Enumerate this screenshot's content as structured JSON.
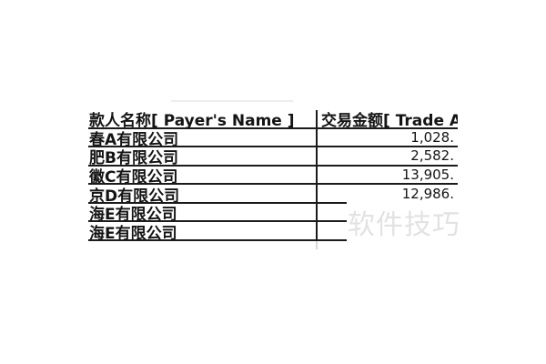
{
  "table": {
    "columns": {
      "payer_header": "款人名称[ Payer's Name ]",
      "amount_header": "交易金额[ Trade Amoun"
    },
    "rows": [
      {
        "payer": "春A有限公司",
        "amount": "1,028."
      },
      {
        "payer": "肥B有限公司",
        "amount": "2,582."
      },
      {
        "payer": "徽C有限公司",
        "amount": "13,905."
      },
      {
        "payer": "京D有限公司",
        "amount": "12,986."
      },
      {
        "payer": "海E有限公司",
        "amount": ""
      },
      {
        "payer": "海E有限公司",
        "amount": ""
      }
    ]
  },
  "watermark": {
    "text": "软件技巧",
    "color": "#e2e2e2"
  },
  "colors": {
    "background": "#ffffff",
    "text": "#141414",
    "grid_line": "#1b1b1b",
    "faint_streak": "#ededed",
    "divider_tail": "#d9d9d9"
  }
}
